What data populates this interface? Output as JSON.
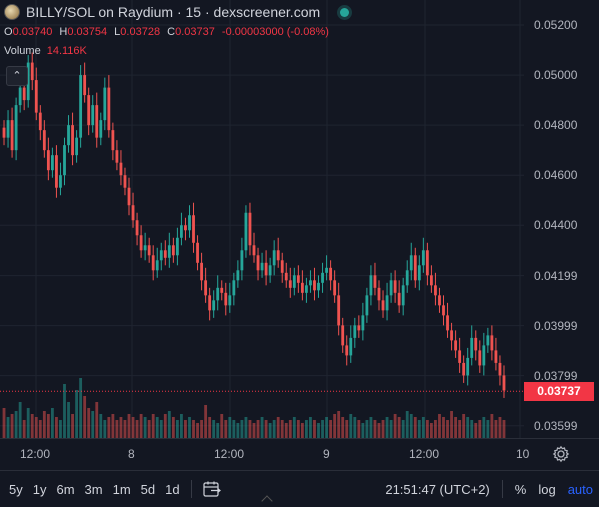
{
  "header": {
    "title": "BILLY/SOL on Raydium · 15 · dexscreener.com",
    "ohlc": [
      {
        "k": "O",
        "v": "0.03740"
      },
      {
        "k": "H",
        "v": "0.03754"
      },
      {
        "k": "L",
        "v": "0.03728"
      },
      {
        "k": "C",
        "v": "0.03737"
      },
      {
        "k": "",
        "v": "-0.00003000 (-0.08%)"
      }
    ],
    "volume_label": "Volume",
    "volume_value": "14.116K",
    "collapse_icon": "chevron-up-icon"
  },
  "price_axis": [
    "0.05200",
    "0.05000",
    "0.04800",
    "0.04600",
    "0.04400",
    "0.04199",
    "0.03999",
    "0.03799",
    "0.03599"
  ],
  "last_price": "0.03737",
  "time_axis": [
    "12:00",
    "8",
    "12:00",
    "9",
    "12:00",
    "10"
  ],
  "bottom_bar": {
    "ranges": [
      "5y",
      "1y",
      "6m",
      "3m",
      "1m",
      "5d",
      "1d"
    ],
    "clock": "21:51:47 (UTC+2)",
    "percent": "%",
    "log": "log",
    "auto": "auto"
  },
  "colors": {
    "up": "#26a69a",
    "down": "#ef5350",
    "background": "#131722",
    "last_price": "#f23645"
  },
  "chart_data": {
    "type": "candlestick",
    "ylim": [
      0.0355,
      0.053
    ],
    "y_ticks": [
      0.052,
      0.05,
      0.048,
      0.046,
      0.044,
      0.04199,
      0.03999,
      0.03799,
      0.03599
    ],
    "last": 0.03737,
    "x_ticks": [
      "12:00",
      "8",
      "12:00",
      "9",
      "12:00",
      "10"
    ],
    "closes": [
      0.0475,
      0.0482,
      0.047,
      0.0488,
      0.0495,
      0.049,
      0.0505,
      0.0498,
      0.0485,
      0.0478,
      0.047,
      0.0462,
      0.0468,
      0.0455,
      0.046,
      0.0472,
      0.048,
      0.0468,
      0.0475,
      0.05,
      0.0492,
      0.048,
      0.0488,
      0.0475,
      0.0482,
      0.0495,
      0.0478,
      0.047,
      0.0465,
      0.046,
      0.0455,
      0.0448,
      0.0442,
      0.0436,
      0.043,
      0.0432,
      0.0428,
      0.0422,
      0.0426,
      0.043,
      0.0427,
      0.0432,
      0.0428,
      0.0435,
      0.044,
      0.0438,
      0.0444,
      0.0433,
      0.0425,
      0.0418,
      0.0412,
      0.0406,
      0.041,
      0.0415,
      0.0413,
      0.0408,
      0.0412,
      0.0418,
      0.0422,
      0.043,
      0.0445,
      0.0432,
      0.0428,
      0.0422,
      0.0425,
      0.042,
      0.0424,
      0.043,
      0.0426,
      0.0421,
      0.0418,
      0.0415,
      0.042,
      0.0417,
      0.0413,
      0.0416,
      0.0418,
      0.0414,
      0.0417,
      0.0421,
      0.0423,
      0.0418,
      0.0412,
      0.04,
      0.0392,
      0.0388,
      0.0395,
      0.04,
      0.0398,
      0.0404,
      0.0412,
      0.042,
      0.0415,
      0.041,
      0.0406,
      0.0412,
      0.0418,
      0.0413,
      0.0408,
      0.0416,
      0.0422,
      0.0428,
      0.0418,
      0.0424,
      0.043,
      0.042,
      0.0416,
      0.0412,
      0.0408,
      0.0404,
      0.0398,
      0.0394,
      0.039,
      0.0385,
      0.038,
      0.0387,
      0.0395,
      0.039,
      0.0384,
      0.0392,
      0.0396,
      0.039,
      0.0385,
      0.038,
      0.0374
    ],
    "volumes": [
      0.5,
      0.35,
      0.4,
      0.45,
      0.6,
      0.3,
      0.5,
      0.4,
      0.35,
      0.3,
      0.45,
      0.4,
      0.5,
      0.35,
      0.3,
      0.9,
      0.6,
      0.4,
      0.8,
      1.0,
      0.7,
      0.5,
      0.45,
      0.6,
      0.4,
      0.3,
      0.35,
      0.4,
      0.3,
      0.35,
      0.3,
      0.4,
      0.35,
      0.3,
      0.4,
      0.35,
      0.3,
      0.4,
      0.35,
      0.3,
      0.4,
      0.45,
      0.35,
      0.3,
      0.4,
      0.3,
      0.35,
      0.3,
      0.25,
      0.3,
      0.55,
      0.35,
      0.3,
      0.25,
      0.4,
      0.3,
      0.35,
      0.3,
      0.25,
      0.3,
      0.35,
      0.3,
      0.25,
      0.3,
      0.35,
      0.3,
      0.25,
      0.3,
      0.35,
      0.3,
      0.25,
      0.3,
      0.35,
      0.3,
      0.25,
      0.3,
      0.35,
      0.3,
      0.25,
      0.3,
      0.35,
      0.3,
      0.4,
      0.45,
      0.35,
      0.3,
      0.4,
      0.35,
      0.3,
      0.25,
      0.3,
      0.35,
      0.3,
      0.25,
      0.3,
      0.35,
      0.3,
      0.4,
      0.35,
      0.3,
      0.45,
      0.4,
      0.35,
      0.3,
      0.35,
      0.3,
      0.25,
      0.3,
      0.4,
      0.35,
      0.3,
      0.45,
      0.35,
      0.3,
      0.4,
      0.35,
      0.3,
      0.25,
      0.3,
      0.35,
      0.3,
      0.4,
      0.3,
      0.35,
      0.3
    ]
  }
}
